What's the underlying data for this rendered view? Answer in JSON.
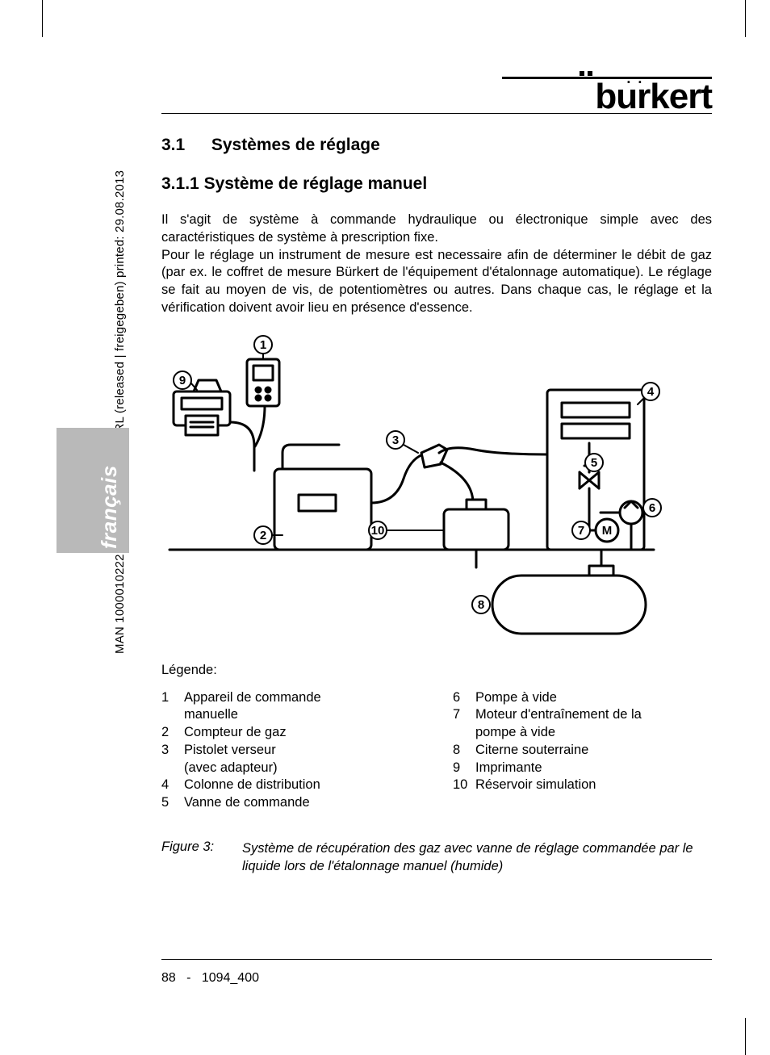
{
  "meta_side_text": "MAN 1000010222 ML Version: I  Status: RL (released | freigegeben)  printed: 29.08.2013",
  "language_tab": "français",
  "logo_text": "burkert",
  "section": {
    "number": "3.1",
    "title": "Systèmes de réglage"
  },
  "subsection": {
    "number": "3.1.1",
    "title": "Système de réglage manuel"
  },
  "paragraph": "Il s'agit de système à commande hydraulique ou électronique simple avec des caractéristiques de système à prescription fixe.\nPour le réglage un instrument de mesure est necessaire afin de déterminer le débit de gaz (par ex. le coffret de mesure Bürkert de l'équipement d'étalonnage automatique). Le réglage se fait au moyen de vis, de potentiomètres ou autres. Dans chaque cas, le réglage et la vérification doivent avoir lieu en présence d'essence.",
  "diagram": {
    "callouts": [
      "1",
      "2",
      "3",
      "4",
      "5",
      "6",
      "7",
      "8",
      "9",
      "10"
    ],
    "motor_label": "M",
    "stroke": "#000000",
    "fill": "#ffffff",
    "line_width": 2
  },
  "legend_title": "Légende:",
  "legend": [
    {
      "n": "1",
      "t": "Appareil de commande manuelle"
    },
    {
      "n": "2",
      "t": "Compteur de gaz"
    },
    {
      "n": "3",
      "t": "Pistolet verseur (avec adapteur)"
    },
    {
      "n": "4",
      "t": "Colonne de distribution"
    },
    {
      "n": "5",
      "t": "Vanne de commande"
    },
    {
      "n": "6",
      "t": "Pompe à vide"
    },
    {
      "n": "7",
      "t": "Moteur d'entraînement de la pompe à vide"
    },
    {
      "n": "8",
      "t": "Citerne souterraine"
    },
    {
      "n": "9",
      "t": "Imprimante"
    },
    {
      "n": "10",
      "t": "Réservoir simulation"
    }
  ],
  "figure": {
    "label": "Figure 3:",
    "caption": "Système de récupération des gaz avec vanne de réglage commandée par le liquide lors de l'étalonnage manuel (humide)"
  },
  "footer": {
    "page": "88",
    "sep": "-",
    "doc": "1094_400"
  },
  "colors": {
    "text": "#000000",
    "tab_bg": "#b9b9b9",
    "tab_text": "#ffffff",
    "page_bg": "#ffffff"
  },
  "typography": {
    "body_size_pt": 12,
    "heading_size_pt": 16,
    "heading_weight": "bold"
  }
}
